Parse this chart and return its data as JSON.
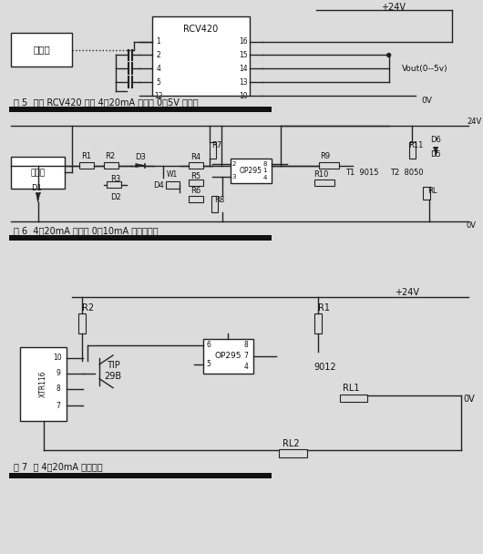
{
  "bg_color": "#dcdcdc",
  "fig1_caption": "图 5  利用 RCV420 构成 4～20mA 变换为 0～5V 的原理",
  "fig2_caption": "图 6  4～20mA 变换为 0～10mA 的电路原理",
  "fig3_caption": "图 7  双 4～20mA 输出原理",
  "divider_color": "#111111",
  "line_color": "#222222",
  "text_color": "#111111"
}
